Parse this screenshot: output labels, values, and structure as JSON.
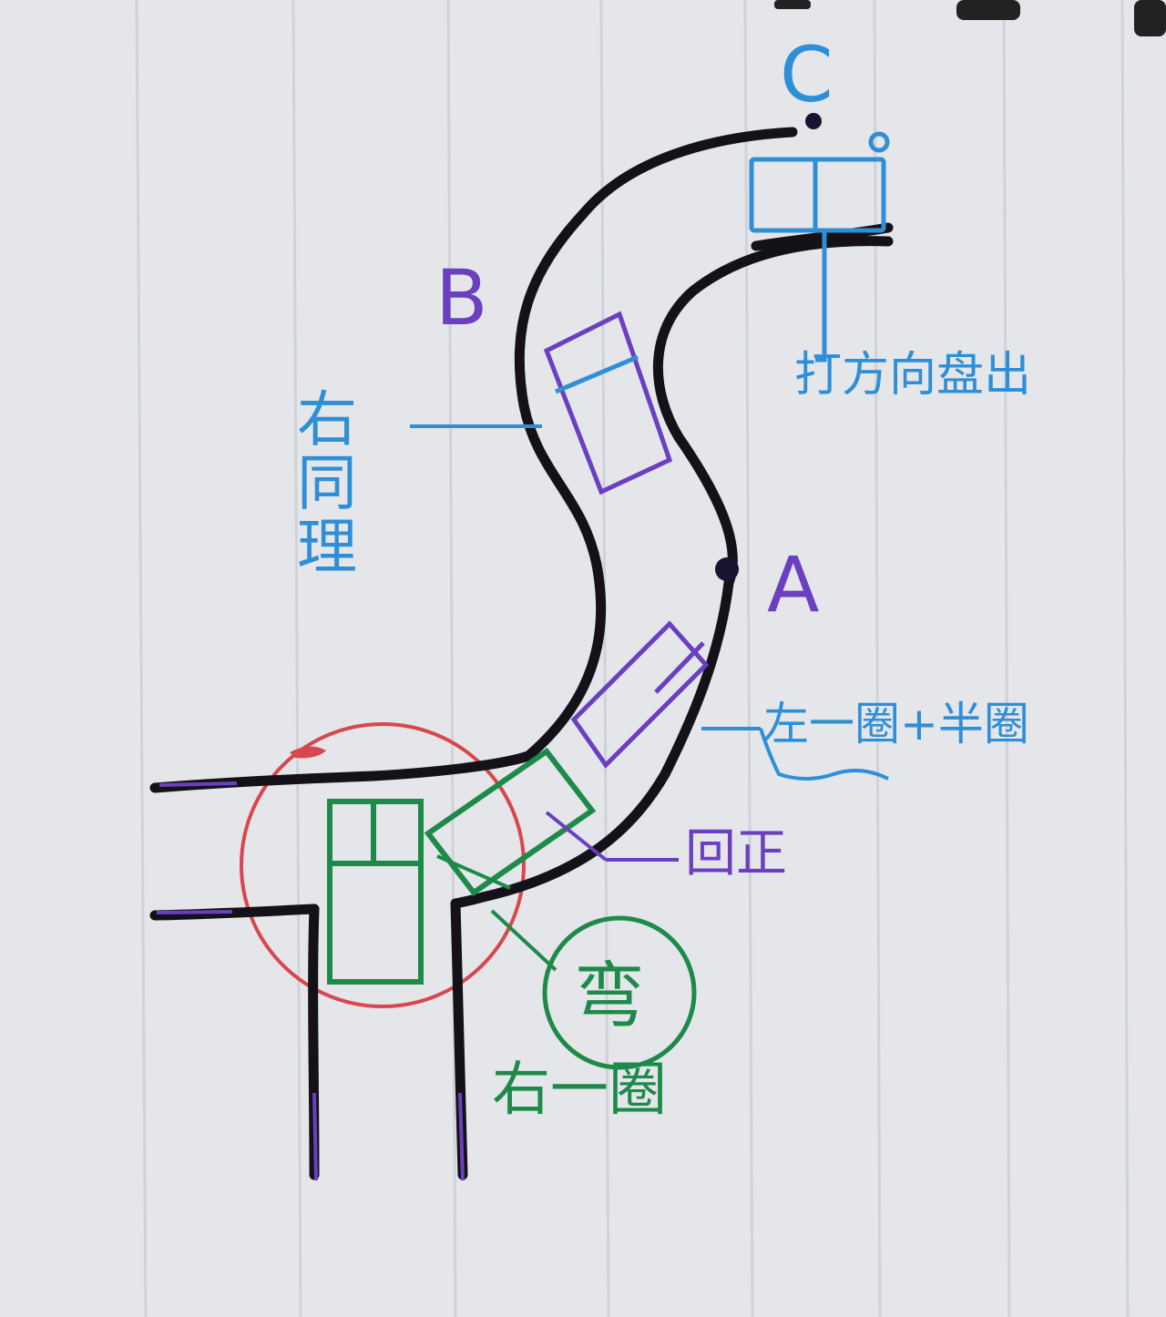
{
  "colors": {
    "paper": "#e4e6ea",
    "rule": "#cfd2d8",
    "road": "#141218",
    "blue": "#2f8fd6",
    "purple": "#6a3fc0",
    "green": "#1e8a4a",
    "red": "#d8464e"
  },
  "points": {
    "a": "A",
    "b": "B",
    "c": "C"
  },
  "notes": {
    "right_same": "右同理",
    "exit": "打方向盘出",
    "left_turn": "左一圈+半圈",
    "return_straight": "回正",
    "turn": "弯",
    "right_turn": "右一圈"
  }
}
